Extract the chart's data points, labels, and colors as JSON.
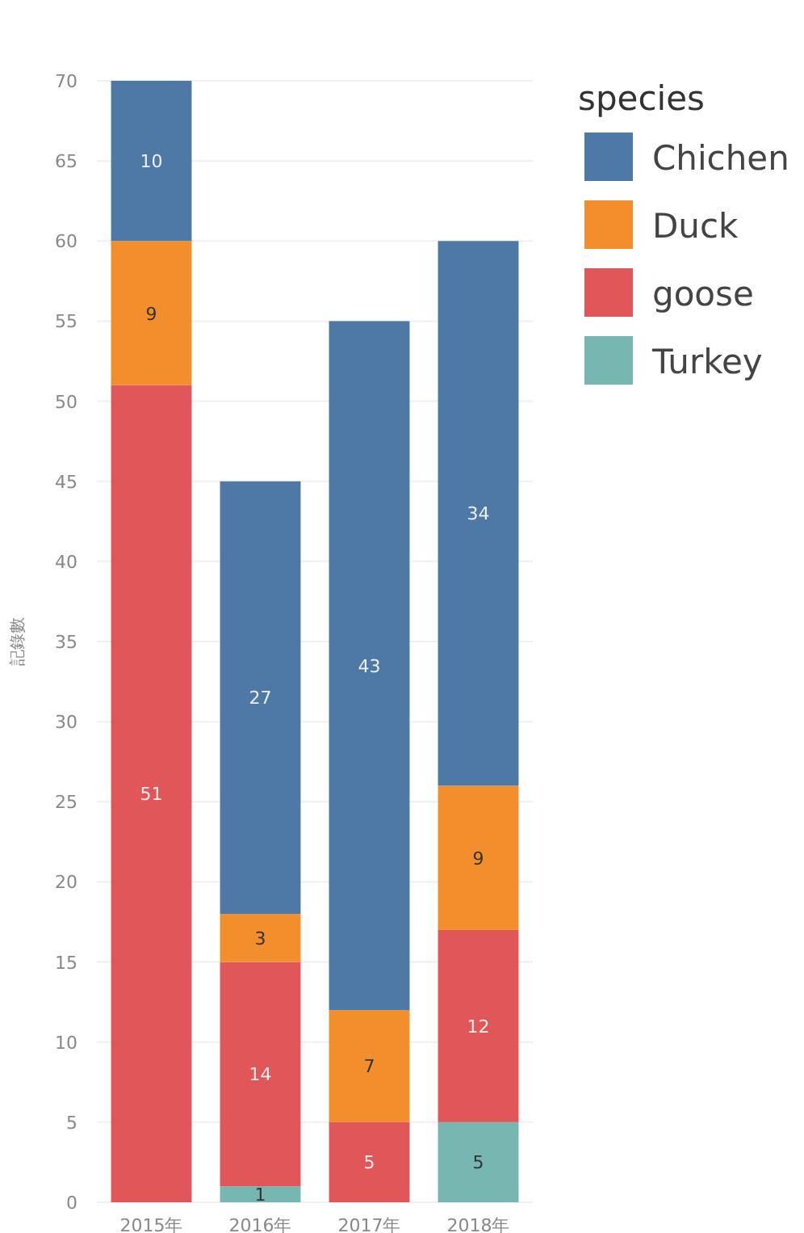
{
  "chart_data": {
    "type": "bar",
    "stacked": true,
    "ylabel": "記錄數",
    "legend_title": "species",
    "legend": "right",
    "grid": "y",
    "data_labels": true,
    "categories": [
      "2015年",
      "2016年",
      "2017年",
      "2018年"
    ],
    "ylim": [
      0,
      70
    ],
    "yticks": [
      0,
      5,
      10,
      15,
      20,
      25,
      30,
      35,
      40,
      45,
      50,
      55,
      60,
      65,
      70
    ],
    "series": [
      {
        "name": "Turkey",
        "color": "#76b7b2",
        "values": [
          null,
          1,
          null,
          5
        ]
      },
      {
        "name": "goose",
        "color": "#e15759",
        "values": [
          51,
          14,
          5,
          12
        ]
      },
      {
        "name": "Duck",
        "color": "#f28e2b",
        "values": [
          9,
          3,
          7,
          9
        ]
      },
      {
        "name": "Chichen",
        "color": "#4e79a7",
        "values": [
          10,
          27,
          43,
          34
        ]
      }
    ]
  }
}
